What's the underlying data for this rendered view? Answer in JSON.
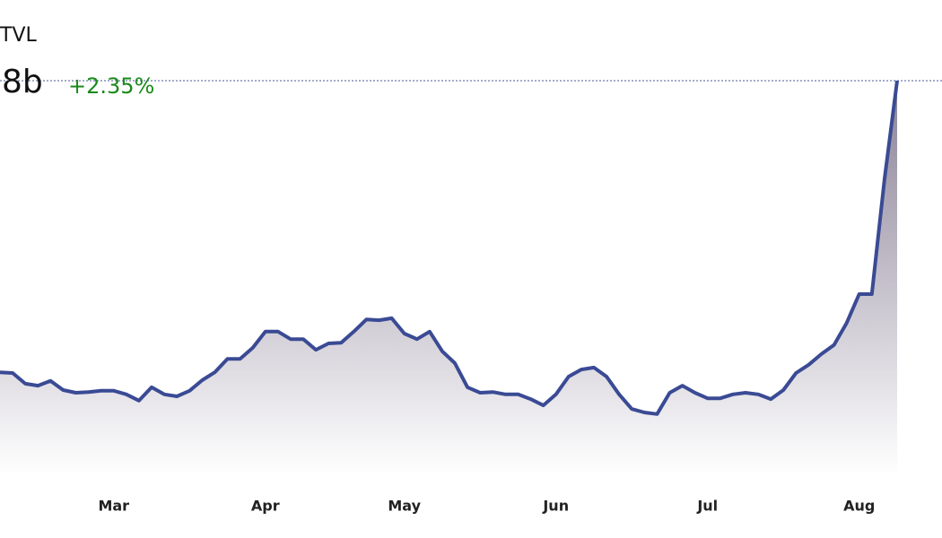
{
  "header": {
    "title": "TVL",
    "value": "8b",
    "change": "+2.35%"
  },
  "chart_data": {
    "type": "area",
    "color": "#3a4a94",
    "categories": [
      null,
      null,
      null,
      null,
      null,
      null,
      null,
      null,
      null,
      "Mar",
      null,
      null,
      null,
      null,
      null,
      null,
      null,
      null,
      null,
      null,
      null,
      "Apr",
      null,
      null,
      null,
      null,
      null,
      null,
      null,
      null,
      null,
      null,
      "May",
      null,
      null,
      null,
      null,
      null,
      null,
      null,
      null,
      null,
      null,
      null,
      "Jun",
      null,
      null,
      null,
      null,
      null,
      null,
      null,
      null,
      null,
      null,
      null,
      "Jul",
      null,
      null,
      null,
      null,
      null,
      null,
      null,
      null,
      null,
      null,
      null,
      "Aug",
      null,
      null,
      null
    ],
    "values": [
      26.1,
      25.9,
      23.2,
      22.7,
      23.9,
      21.6,
      20.9,
      21.1,
      21.4,
      21.4,
      20.5,
      18.9,
      22.3,
      20.5,
      20.0,
      21.4,
      24.1,
      26.1,
      29.5,
      29.5,
      32.3,
      36.4,
      36.4,
      34.5,
      34.5,
      31.8,
      33.4,
      33.6,
      36.4,
      39.5,
      39.3,
      39.8,
      35.9,
      34.5,
      36.4,
      31.4,
      28.4,
      22.3,
      20.9,
      21.1,
      20.5,
      20.5,
      19.3,
      17.7,
      20.5,
      25.0,
      26.8,
      27.3,
      25.0,
      20.5,
      16.8,
      15.9,
      15.5,
      20.9,
      22.7,
      20.9,
      19.5,
      19.5,
      20.5,
      20.9,
      20.5,
      19.3,
      21.6,
      25.9,
      28.0,
      30.7,
      33.0,
      38.6,
      45.9,
      45.9,
      75.0,
      100
    ],
    "ylim": [
      0,
      100
    ]
  }
}
